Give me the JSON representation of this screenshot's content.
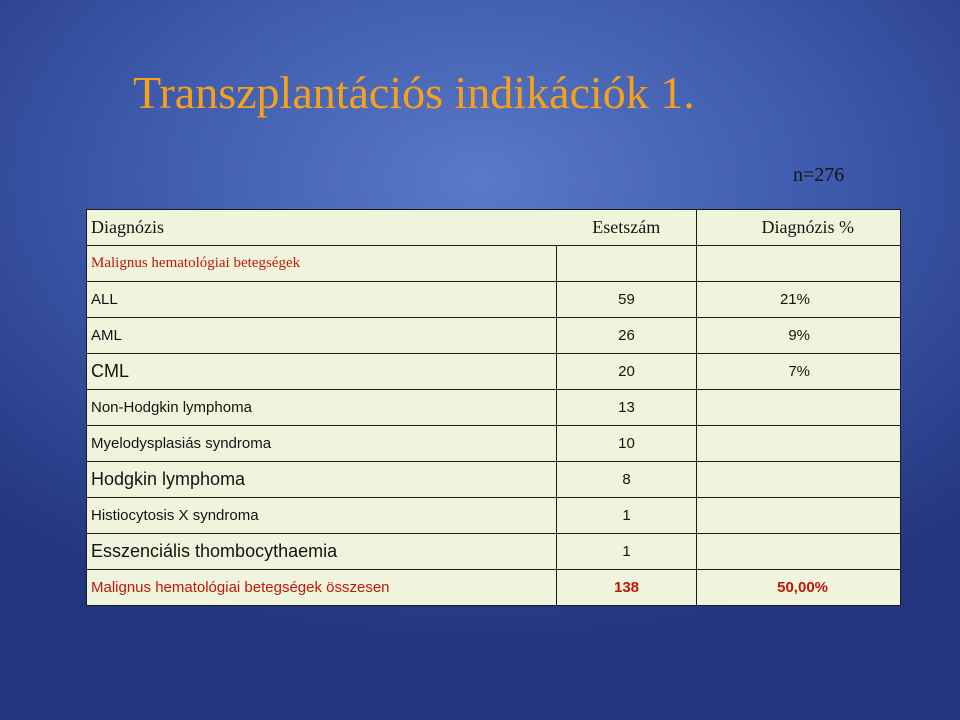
{
  "title": "Transzplantációs indikációk 1.",
  "n_label": "n=276",
  "table": {
    "headers": [
      "Diagnózis",
      "Esetszám",
      "Diagnózis %"
    ],
    "group_label": "Malignus hematológiai betegségek",
    "rows": [
      {
        "diagnosis": "ALL",
        "count": "59",
        "percent": "21%"
      },
      {
        "diagnosis": "AML",
        "count": "26",
        "percent": "9%"
      },
      {
        "diagnosis": "CML",
        "count": "20",
        "percent": "7%"
      },
      {
        "diagnosis": "Non-Hodgkin lymphoma",
        "count": "13",
        "percent": ""
      },
      {
        "diagnosis": "Myelodysplasiás syndroma",
        "count": "10",
        "percent": ""
      },
      {
        "diagnosis": "Hodgkin lymphoma",
        "count": "8",
        "percent": ""
      },
      {
        "diagnosis": "Histiocytosis X syndroma",
        "count": "1",
        "percent": ""
      },
      {
        "diagnosis": "Esszenciális thombocythaemia",
        "count": "1",
        "percent": ""
      }
    ],
    "total": {
      "diagnosis": "Malignus hematológiai betegségek összesen",
      "count": "138",
      "percent": "50,00%"
    }
  },
  "colors": {
    "title": "#f6a11b",
    "highlight": "#c2160a",
    "cell_bg": "#f1f4dc"
  }
}
